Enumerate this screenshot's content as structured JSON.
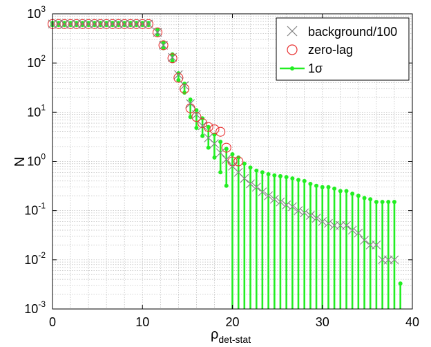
{
  "chart_data": {
    "type": "scatter",
    "xlabel": "ρ",
    "xlabel_subscript": "det-stat",
    "ylabel": "N",
    "y_scale": "log",
    "xlim": [
      0,
      40
    ],
    "ylim": [
      0.001,
      1000
    ],
    "x_ticks": [
      "0",
      "10",
      "20",
      "30",
      "40"
    ],
    "y_tick_exponents": [
      "-3",
      "-2",
      "-1",
      "0",
      "1",
      "2",
      "3"
    ],
    "y_tick_base": "10",
    "grid": true,
    "legend_position": "top-right",
    "legend": [
      {
        "label": "background/100",
        "marker": "x",
        "color": "#808080"
      },
      {
        "label": "zero-lag",
        "marker": "circle",
        "color": "#e83030"
      },
      {
        "label": "1σ",
        "marker": "dot-line",
        "color": "#22ee22"
      }
    ],
    "series": [
      {
        "name": "background/100",
        "x": [
          0,
          0.67,
          1.33,
          2,
          2.67,
          3.33,
          4,
          4.67,
          5.33,
          6,
          6.67,
          7.33,
          8,
          8.67,
          9.33,
          10,
          10.67,
          11.67,
          12.33,
          13.33,
          14,
          14.67,
          15.33,
          16,
          16.67,
          17.33,
          18,
          18.67,
          19.33,
          20,
          20.67,
          21.33,
          22,
          22.67,
          23.33,
          24,
          24.67,
          25.33,
          26,
          26.67,
          27.33,
          28,
          28.67,
          29.33,
          30,
          30.67,
          31.33,
          32,
          32.67,
          33.33,
          34,
          34.67,
          35.33,
          36,
          36.67,
          37.33,
          38
        ],
        "y": [
          620,
          620,
          620,
          620,
          620,
          620,
          620,
          620,
          620,
          620,
          620,
          620,
          620,
          620,
          620,
          620,
          620,
          420,
          230,
          130,
          58,
          35,
          15,
          9,
          5.3,
          3,
          2.3,
          1.5,
          1.1,
          0.8,
          0.6,
          0.45,
          0.35,
          0.3,
          0.24,
          0.2,
          0.17,
          0.15,
          0.13,
          0.12,
          0.1,
          0.09,
          0.08,
          0.07,
          0.06,
          0.055,
          0.05,
          0.05,
          0.05,
          0.04,
          0.035,
          0.025,
          0.02,
          0.02,
          0.01,
          0.01,
          0.01
        ]
      },
      {
        "name": "zero-lag",
        "x": [
          0,
          0.67,
          1.33,
          2,
          2.67,
          3.33,
          4,
          4.67,
          5.33,
          6,
          6.67,
          7.33,
          8,
          8.67,
          9.33,
          10,
          10.67,
          11.67,
          12.33,
          13.33,
          14,
          14.67,
          15.33,
          16,
          16.67,
          17.33,
          18,
          18.67,
          19.33,
          20,
          20.67
        ],
        "y": [
          620,
          620,
          620,
          620,
          620,
          620,
          620,
          620,
          620,
          620,
          620,
          620,
          620,
          620,
          620,
          620,
          620,
          420,
          230,
          125,
          50,
          30,
          12,
          8,
          6,
          5,
          4.5,
          4,
          1.9,
          1,
          1
        ]
      },
      {
        "name": "1σ",
        "x": [
          0,
          0.67,
          1.33,
          2,
          2.67,
          3.33,
          4,
          4.67,
          5.33,
          6,
          6.67,
          7.33,
          8,
          8.67,
          9.33,
          10,
          10.67,
          11.67,
          12.33,
          13.33,
          14,
          14.67,
          15.33,
          16,
          16.67,
          17.33,
          18,
          18.67,
          19.33,
          20,
          20.67,
          21.33,
          22,
          22.67,
          23.33,
          24,
          24.67,
          25.33,
          26,
          26.67,
          27.33,
          28,
          28.67,
          29.33,
          30,
          30.67,
          31.33,
          32,
          32.67,
          33.33,
          34,
          34.67,
          35.33,
          36,
          36.67,
          37.33,
          38,
          38.67
        ],
        "y_upper": [
          655,
          655,
          655,
          655,
          655,
          655,
          655,
          655,
          655,
          655,
          655,
          655,
          655,
          655,
          655,
          655,
          655,
          470,
          260,
          150,
          62,
          38,
          18,
          11,
          7.5,
          5,
          3.5,
          2.5,
          1.8,
          1.4,
          1.2,
          0.9,
          0.75,
          0.65,
          0.6,
          0.55,
          0.52,
          0.5,
          0.48,
          0.45,
          0.42,
          0.4,
          0.35,
          0.32,
          0.3,
          0.3,
          0.28,
          0.25,
          0.25,
          0.22,
          0.2,
          0.18,
          0.17,
          0.15,
          0.15,
          0.15,
          0.15,
          0.0033
        ],
        "y_lower": [
          590,
          590,
          590,
          590,
          590,
          590,
          590,
          590,
          590,
          590,
          590,
          590,
          590,
          590,
          590,
          590,
          590,
          380,
          200,
          110,
          45,
          25,
          8,
          4.8,
          3.3,
          1.9,
          1.2,
          0.6,
          0.32,
          0.001,
          0.001,
          0.001,
          0.001,
          0.001,
          0.001,
          0.001,
          0.001,
          0.001,
          0.001,
          0.001,
          0.001,
          0.001,
          0.001,
          0.001,
          0.001,
          0.001,
          0.001,
          0.001,
          0.001,
          0.001,
          0.001,
          0.001,
          0.001,
          0.001,
          0.001,
          0.001,
          0.001,
          0.001
        ]
      }
    ]
  }
}
